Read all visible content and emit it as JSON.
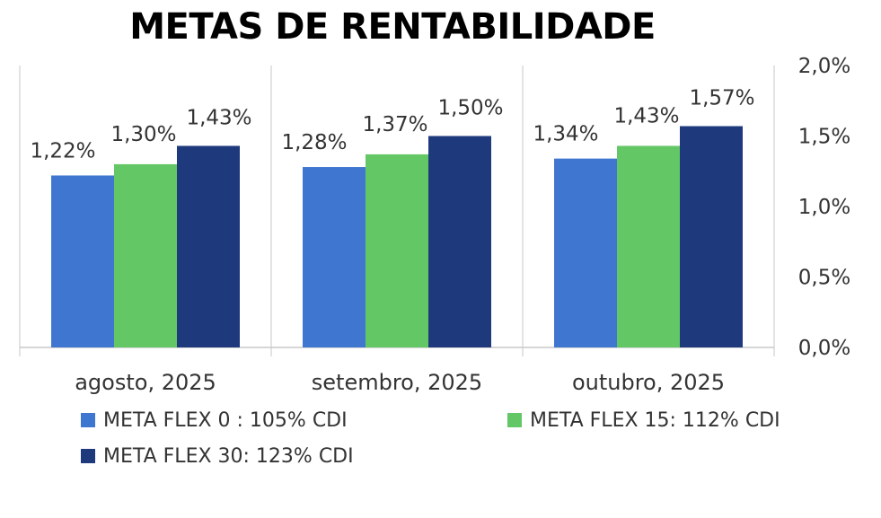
{
  "chart_data": {
    "type": "bar",
    "title": "METAS DE RENTABILIDADE",
    "categories": [
      "agosto, 2025",
      "setembro, 2025",
      "outubro, 2025"
    ],
    "series": [
      {
        "name": "META FLEX 0 : 105% CDI",
        "color": "#3F77D0",
        "values": [
          1.22,
          1.28,
          1.34
        ],
        "labels": [
          "1,22%",
          "1,28%",
          "1,34%"
        ]
      },
      {
        "name": "META FLEX 15: 112% CDI",
        "color": "#63C766",
        "values": [
          1.3,
          1.37,
          1.43
        ],
        "labels": [
          "1,30%",
          "1,37%",
          "1,43%"
        ]
      },
      {
        "name": "META FLEX 30: 123% CDI",
        "color": "#1F3A7C",
        "values": [
          1.43,
          1.5,
          1.57
        ],
        "labels": [
          "1,43%",
          "1,50%",
          "1,57%"
        ]
      }
    ],
    "ylim": [
      0,
      2.0
    ],
    "yticks": [
      0,
      0.5,
      1.0,
      1.5,
      2.0
    ],
    "ytick_labels": [
      "0,0%",
      "0,5%",
      "1,0%",
      "1,5%",
      "2,0%"
    ],
    "y_axis_side": "right",
    "xlabel": "",
    "ylabel": "",
    "grid": "vertical category separators",
    "legend_position": "bottom"
  }
}
